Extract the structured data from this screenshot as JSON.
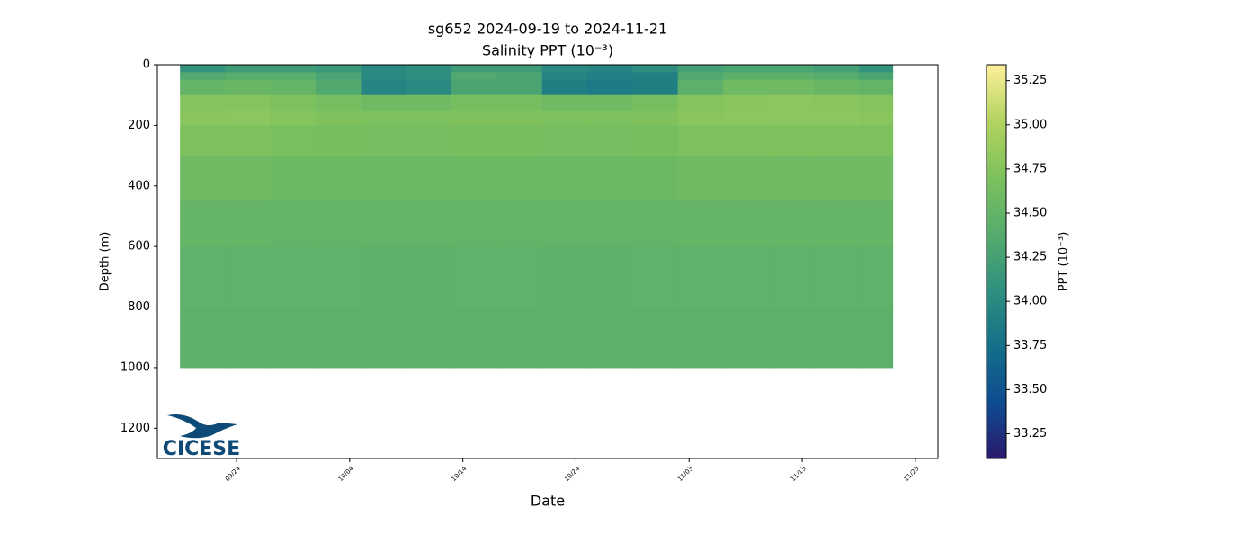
{
  "chart_data": {
    "type": "heatmap",
    "title": "sg652 2024-09-19 to 2024-11-21",
    "subtitle": "Salinity PPT (10⁻³)",
    "x_label": "Date",
    "y_label": "Depth (m)",
    "colorbar_label": "PPT (10⁻³)",
    "logo_text": "CICESE",
    "x": [
      "09/19",
      "09/23",
      "09/27",
      "10/01",
      "10/05",
      "10/09",
      "10/13",
      "10/17",
      "10/21",
      "10/25",
      "10/29",
      "11/02",
      "11/06",
      "11/10",
      "11/14",
      "11/18",
      "11/21"
    ],
    "depths": [
      0,
      25,
      50,
      100,
      150,
      200,
      300,
      450,
      600,
      800,
      1000
    ],
    "values": [
      [
        34.1,
        34.2,
        34.2,
        34.15,
        34.0,
        34.05,
        34.2,
        34.2,
        34.0,
        33.95,
        34.05,
        34.25,
        34.3,
        34.3,
        34.25,
        34.1
      ],
      [
        34.35,
        34.4,
        34.4,
        34.3,
        34.0,
        34.05,
        34.35,
        34.3,
        33.95,
        33.9,
        33.9,
        34.35,
        34.45,
        34.45,
        34.4,
        34.3
      ],
      [
        34.5,
        34.55,
        34.5,
        34.35,
        33.95,
        34.0,
        34.3,
        34.3,
        33.9,
        33.85,
        33.9,
        34.45,
        34.6,
        34.6,
        34.55,
        34.5
      ],
      [
        34.75,
        34.75,
        34.7,
        34.65,
        34.6,
        34.6,
        34.65,
        34.65,
        34.6,
        34.6,
        34.65,
        34.75,
        34.78,
        34.8,
        34.78,
        34.75
      ],
      [
        34.78,
        34.8,
        34.75,
        34.72,
        34.7,
        34.7,
        34.72,
        34.72,
        34.7,
        34.7,
        34.72,
        34.78,
        34.8,
        34.8,
        34.8,
        34.78
      ],
      [
        34.7,
        34.72,
        34.68,
        34.66,
        34.65,
        34.65,
        34.66,
        34.66,
        34.65,
        34.65,
        34.66,
        34.7,
        34.7,
        34.72,
        34.72,
        34.7
      ],
      [
        34.6,
        34.6,
        34.58,
        34.58,
        34.57,
        34.57,
        34.58,
        34.58,
        34.57,
        34.57,
        34.58,
        34.6,
        34.6,
        34.6,
        34.6,
        34.6
      ],
      [
        34.52,
        34.52,
        34.51,
        34.51,
        34.5,
        34.5,
        34.51,
        34.51,
        34.5,
        34.5,
        34.51,
        34.52,
        34.52,
        34.52,
        34.52,
        34.52
      ],
      [
        34.47,
        34.47,
        34.47,
        34.47,
        34.46,
        34.46,
        34.47,
        34.47,
        34.46,
        34.46,
        34.47,
        34.47,
        34.47,
        34.47,
        34.47,
        34.47
      ],
      [
        34.45,
        34.45,
        34.45,
        34.45,
        34.45,
        34.45,
        34.45,
        34.45,
        34.45,
        34.45,
        34.45,
        34.45,
        34.45,
        34.45,
        34.45,
        34.45
      ]
    ],
    "xlim": [
      "09/17",
      "11/25"
    ],
    "xticks": [
      "09/24",
      "10/04",
      "10/14",
      "10/24",
      "11/03",
      "11/13",
      "11/23"
    ],
    "ylim": [
      1300,
      0
    ],
    "yticks": [
      0,
      200,
      400,
      600,
      800,
      1000,
      1200
    ],
    "clim": [
      33.11,
      35.34
    ],
    "cticks": [
      33.25,
      {
        "value": 33.5,
        "label": "33.50"
      },
      33.75,
      {
        "value": 34,
        "label": "34.00"
      },
      34.25,
      {
        "value": 34.5,
        "label": "34.50"
      },
      34.75,
      {
        "value": 35,
        "label": "35.00"
      },
      35.25
    ],
    "colormap": [
      "#2a186c",
      "#0f4c91",
      "#146f89",
      "#30907f",
      "#55ac6d",
      "#7cc15d",
      "#b2d35f",
      "#fdef9a"
    ]
  }
}
